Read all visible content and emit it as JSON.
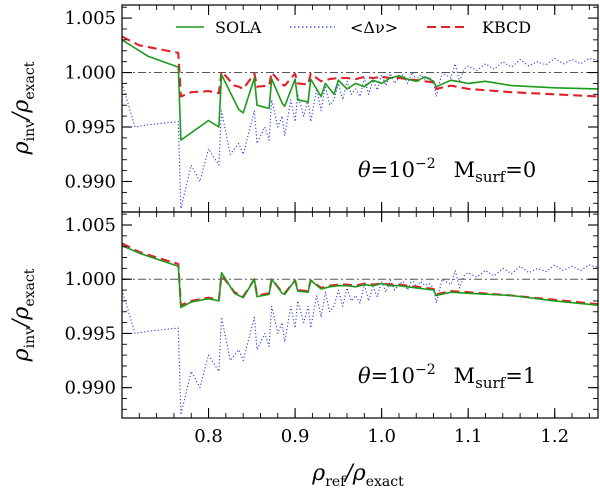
{
  "chart_data": [
    {
      "type": "line",
      "panel": "top",
      "ylim": [
        0.9872,
        1.0062
      ],
      "xlim": [
        0.7,
        1.25
      ],
      "yticks": [
        0.99,
        0.995,
        1.0,
        1.005
      ],
      "ytick_labels": [
        "0.990",
        "0.995",
        "1.000",
        "1.005"
      ],
      "ylabel": {
        "base": "ρ",
        "num_sub": "inv",
        "sep": "/ρ",
        "den_sub": "exact"
      },
      "annotation": {
        "theta_sym": "θ",
        "theta_eq": "=10",
        "theta_exp": "−2",
        "m": "M",
        "m_sub": "surf",
        "m_eq": "=0"
      },
      "legend": [
        {
          "label": "SOLA",
          "color": "#1a9a1a",
          "style": "solid"
        },
        {
          "label": "<Δν>",
          "color": "#2b3bd6",
          "style": "dotted"
        },
        {
          "label": "KBCD",
          "color": "#e0202a",
          "style": "dashed"
        }
      ],
      "reference_line": 1.0,
      "series": [
        {
          "name": "SOLA",
          "color": "#1a9a1a",
          "x": [
            0.7,
            0.73,
            0.765,
            0.768,
            0.8,
            0.812,
            0.815,
            0.835,
            0.84,
            0.853,
            0.856,
            0.87,
            0.873,
            0.885,
            0.888,
            0.9,
            0.903,
            0.915,
            0.918,
            0.93,
            0.935,
            0.945,
            0.95,
            0.96,
            0.97,
            0.98,
            0.99,
            1.0,
            1.01,
            1.02,
            1.03,
            1.04,
            1.05,
            1.06,
            1.063,
            1.08,
            1.1,
            1.12,
            1.15,
            1.2,
            1.25
          ],
          "y": [
            1.003,
            1.0015,
            1.0005,
            0.9938,
            0.9956,
            0.995,
            0.9998,
            0.9966,
            0.9963,
            0.9995,
            0.997,
            0.9967,
            0.9994,
            0.9972,
            0.9969,
            0.9994,
            0.9975,
            0.9973,
            0.9994,
            0.9978,
            0.999,
            0.998,
            0.9993,
            0.9985,
            0.999,
            0.9987,
            0.9993,
            0.999,
            0.9995,
            0.9997,
            0.9994,
            0.9992,
            0.9996,
            0.9992,
            0.9987,
            0.9993,
            0.999,
            0.9992,
            0.9988,
            0.9986,
            0.9985
          ]
        },
        {
          "name": "<Δν>",
          "color": "#2b3bd6",
          "x": [
            0.7,
            0.715,
            0.73,
            0.765,
            0.768,
            0.78,
            0.79,
            0.8,
            0.812,
            0.815,
            0.825,
            0.835,
            0.84,
            0.853,
            0.856,
            0.865,
            0.87,
            0.873,
            0.88,
            0.885,
            0.888,
            0.895,
            0.9,
            0.903,
            0.91,
            0.915,
            0.918,
            0.925,
            0.93,
            0.935,
            0.94,
            0.945,
            0.95,
            0.955,
            0.96,
            0.965,
            0.97,
            0.975,
            0.98,
            0.985,
            0.99,
            0.995,
            1.0,
            1.005,
            1.01,
            1.015,
            1.02,
            1.025,
            1.03,
            1.035,
            1.04,
            1.045,
            1.05,
            1.055,
            1.06,
            1.063,
            1.07,
            1.08,
            1.085,
            1.09,
            1.095,
            1.1,
            1.11,
            1.12,
            1.13,
            1.14,
            1.15,
            1.16,
            1.17,
            1.18,
            1.19,
            1.2,
            1.21,
            1.22,
            1.23,
            1.24,
            1.25
          ],
          "y": [
            0.999,
            0.995,
            0.9952,
            0.9955,
            0.9875,
            0.9915,
            0.99,
            0.993,
            0.9915,
            0.9965,
            0.9925,
            0.9935,
            0.9925,
            0.9965,
            0.9935,
            0.995,
            0.9938,
            0.9975,
            0.995,
            0.996,
            0.9942,
            0.9975,
            0.9955,
            0.998,
            0.996,
            0.9975,
            0.9955,
            0.9985,
            0.9965,
            0.9988,
            0.997,
            0.9975,
            0.999,
            0.9975,
            0.9992,
            0.998,
            0.9985,
            0.9978,
            0.9995,
            0.998,
            0.9993,
            0.9984,
            0.9998,
            0.9988,
            0.9999,
            0.999,
            0.9995,
            0.9998,
            0.999,
            1.0,
            0.9993,
            0.9998,
            0.9994,
            0.9996,
            0.9992,
            0.9978,
            1.0,
            0.9995,
            1.0008,
            0.9992,
            1.0003,
            1.0006,
            1.0002,
            1.0008,
            1.0003,
            1.001,
            1.0005,
            1.0012,
            1.0006,
            1.001,
            1.0007,
            1.0013,
            1.0008,
            1.0012,
            1.0008,
            1.0013,
            1.0011
          ]
        },
        {
          "name": "KBCD",
          "color": "#e0202a",
          "x": [
            0.7,
            0.72,
            0.765,
            0.768,
            0.78,
            0.8,
            0.812,
            0.815,
            0.83,
            0.835,
            0.84,
            0.853,
            0.856,
            0.87,
            0.873,
            0.885,
            0.888,
            0.9,
            0.903,
            0.915,
            0.918,
            0.93,
            0.94,
            0.95,
            0.96,
            0.97,
            0.98,
            0.99,
            1.0,
            1.01,
            1.02,
            1.03,
            1.04,
            1.05,
            1.06,
            1.063,
            1.08,
            1.1,
            1.15,
            1.2,
            1.25
          ],
          "y": [
            1.0033,
            1.0025,
            1.0018,
            0.9978,
            0.9982,
            0.9983,
            0.9981,
            1.0001,
            0.9988,
            0.9987,
            0.9985,
            0.9999,
            0.9987,
            0.9988,
            1.0,
            0.9989,
            0.9988,
            0.9999,
            0.999,
            0.9989,
            0.9999,
            0.9992,
            0.9994,
            0.9995,
            0.9995,
            0.9994,
            0.9996,
            0.9995,
            0.9996,
            0.9995,
            0.9995,
            0.9994,
            0.9993,
            0.9992,
            0.9991,
            0.9985,
            0.9988,
            0.9985,
            0.9982,
            0.998,
            0.9978
          ]
        }
      ]
    },
    {
      "type": "line",
      "panel": "bottom",
      "ylim": [
        0.9872,
        1.0062
      ],
      "xlim": [
        0.7,
        1.25
      ],
      "xticks": [
        0.8,
        0.9,
        1.0,
        1.1,
        1.2
      ],
      "xtick_labels": [
        "0.8",
        "0.9",
        "1.0",
        "1.1",
        "1.2"
      ],
      "yticks": [
        0.99,
        0.995,
        1.0,
        1.005
      ],
      "ytick_labels": [
        "0.990",
        "0.995",
        "1.000",
        "1.005"
      ],
      "xlabel": {
        "base": "ρ",
        "num_sub": "ref",
        "sep": "/ρ",
        "den_sub": "exact"
      },
      "ylabel": {
        "base": "ρ",
        "num_sub": "inv",
        "sep": "/ρ",
        "den_sub": "exact"
      },
      "annotation": {
        "theta_sym": "θ",
        "theta_eq": "=10",
        "theta_exp": "−2",
        "m": "M",
        "m_sub": "surf",
        "m_eq": "=1"
      },
      "reference_line": 1.0,
      "series": [
        {
          "name": "SOLA",
          "color": "#1a9a1a",
          "x": [
            0.7,
            0.72,
            0.765,
            0.768,
            0.78,
            0.8,
            0.812,
            0.815,
            0.83,
            0.835,
            0.84,
            0.853,
            0.856,
            0.87,
            0.873,
            0.885,
            0.888,
            0.9,
            0.903,
            0.915,
            0.918,
            0.93,
            0.94,
            0.95,
            0.96,
            0.97,
            0.98,
            0.99,
            1.0,
            1.01,
            1.02,
            1.03,
            1.04,
            1.05,
            1.06,
            1.063,
            1.08,
            1.1,
            1.15,
            1.2,
            1.25
          ],
          "y": [
            1.0031,
            1.0024,
            1.0012,
            0.9974,
            0.9979,
            0.9982,
            0.998,
            1.0006,
            0.9987,
            0.9985,
            0.9983,
            1.0,
            0.9984,
            0.9986,
            1.0,
            0.9987,
            0.9986,
            0.9999,
            0.9989,
            0.9988,
            0.9999,
            0.9991,
            0.9993,
            0.9994,
            0.9994,
            0.9993,
            0.9995,
            0.9994,
            0.9996,
            0.9994,
            0.9994,
            0.9993,
            0.9992,
            0.9991,
            0.999,
            0.9985,
            0.9988,
            0.9987,
            0.9985,
            0.998,
            0.9976
          ]
        },
        {
          "name": "<Δν>",
          "color": "#2b3bd6",
          "x": [
            0.7,
            0.715,
            0.73,
            0.765,
            0.768,
            0.78,
            0.79,
            0.8,
            0.812,
            0.815,
            0.825,
            0.835,
            0.84,
            0.853,
            0.856,
            0.865,
            0.87,
            0.873,
            0.88,
            0.885,
            0.888,
            0.895,
            0.9,
            0.903,
            0.91,
            0.915,
            0.918,
            0.925,
            0.93,
            0.935,
            0.94,
            0.945,
            0.95,
            0.955,
            0.96,
            0.965,
            0.97,
            0.975,
            0.98,
            0.985,
            0.99,
            0.995,
            1.0,
            1.005,
            1.01,
            1.015,
            1.02,
            1.025,
            1.03,
            1.035,
            1.04,
            1.045,
            1.05,
            1.055,
            1.06,
            1.063,
            1.07,
            1.08,
            1.085,
            1.09,
            1.095,
            1.1,
            1.11,
            1.12,
            1.13,
            1.14,
            1.15,
            1.16,
            1.17,
            1.18,
            1.19,
            1.2,
            1.21,
            1.22,
            1.23,
            1.24,
            1.25
          ],
          "y": [
            0.999,
            0.995,
            0.9952,
            0.9955,
            0.9875,
            0.9915,
            0.99,
            0.993,
            0.9915,
            0.9965,
            0.9925,
            0.9935,
            0.9925,
            0.9965,
            0.9935,
            0.995,
            0.9938,
            0.9975,
            0.995,
            0.996,
            0.9942,
            0.9975,
            0.9955,
            0.998,
            0.996,
            0.9975,
            0.9955,
            0.9985,
            0.9965,
            0.9988,
            0.997,
            0.9975,
            0.999,
            0.9975,
            0.9992,
            0.998,
            0.9985,
            0.9978,
            0.9995,
            0.998,
            0.9993,
            0.9984,
            0.9998,
            0.9988,
            0.9999,
            0.999,
            0.9995,
            0.9998,
            0.999,
            1.0,
            0.9993,
            0.9998,
            0.9994,
            0.9996,
            0.9992,
            0.9978,
            1.0,
            0.9995,
            1.0008,
            0.9992,
            1.0003,
            1.0006,
            1.0002,
            1.0008,
            1.0003,
            1.001,
            1.0005,
            1.0012,
            1.0006,
            1.001,
            1.0007,
            1.0013,
            1.0008,
            1.0012,
            1.0008,
            1.0013,
            1.0011
          ]
        },
        {
          "name": "KBCD",
          "color": "#e0202a",
          "x": [
            0.7,
            0.72,
            0.765,
            0.768,
            0.78,
            0.8,
            0.812,
            0.815,
            0.83,
            0.835,
            0.84,
            0.853,
            0.856,
            0.87,
            0.873,
            0.885,
            0.888,
            0.9,
            0.903,
            0.915,
            0.918,
            0.93,
            0.94,
            0.95,
            0.96,
            0.97,
            0.98,
            0.99,
            1.0,
            1.01,
            1.02,
            1.03,
            1.04,
            1.05,
            1.06,
            1.063,
            1.08,
            1.1,
            1.15,
            1.2,
            1.25
          ],
          "y": [
            1.0033,
            1.0025,
            1.0014,
            0.9976,
            0.998,
            0.9983,
            0.9981,
            1.0004,
            0.9988,
            0.9986,
            0.9984,
            1.0,
            0.9985,
            0.9987,
            1.0,
            0.9988,
            0.9987,
            0.9999,
            0.999,
            0.9989,
            0.9999,
            0.9992,
            0.9994,
            0.9995,
            0.9995,
            0.9994,
            0.9996,
            0.9995,
            0.9996,
            0.9995,
            0.9995,
            0.9994,
            0.9993,
            0.9992,
            0.9991,
            0.9986,
            0.9989,
            0.9988,
            0.9985,
            0.9981,
            0.9977
          ]
        }
      ]
    }
  ]
}
